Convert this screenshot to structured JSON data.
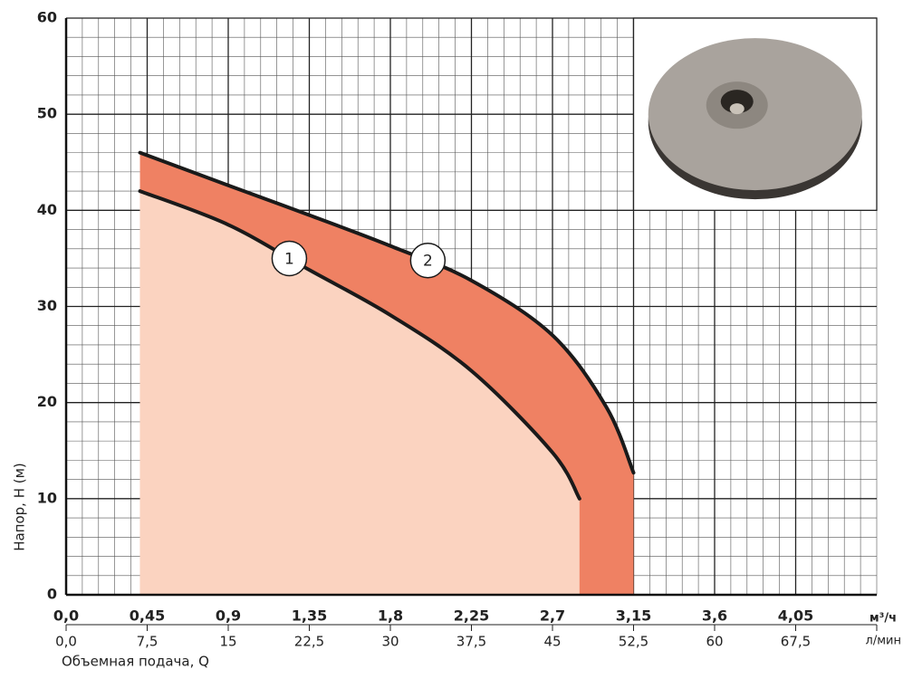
{
  "chart_data": {
    "type": "area",
    "x_label": "Объемная подача, Q",
    "y_label": "Напор, Н (м)",
    "x_unit": "м³/ч",
    "x2_unit": "л/мин",
    "xlim": [
      0,
      4.5
    ],
    "xticks": [
      {
        "value": 0,
        "label": "0,0"
      },
      {
        "value": 0.45,
        "label": "0,45"
      },
      {
        "value": 0.9,
        "label": "0,9"
      },
      {
        "value": 1.35,
        "label": "1,35"
      },
      {
        "value": 1.8,
        "label": "1,8"
      },
      {
        "value": 2.25,
        "label": "2,25"
      },
      {
        "value": 2.7,
        "label": "2,7"
      },
      {
        "value": 3.15,
        "label": "3,15"
      },
      {
        "value": 3.6,
        "label": "3,6"
      },
      {
        "value": 4.05,
        "label": "4,05"
      }
    ],
    "x2lim": [
      0,
      75
    ],
    "x2ticks": [
      {
        "value": 0,
        "label": "0,0"
      },
      {
        "value": 7.5,
        "label": "7,5"
      },
      15,
      {
        "value": 22.5,
        "label": "22,5"
      },
      30,
      {
        "value": 37.5,
        "label": "37,5"
      },
      45,
      {
        "value": 52.5,
        "label": "52,5"
      },
      60,
      {
        "value": 67.5,
        "label": "67,5"
      }
    ],
    "ylim": [
      0,
      60
    ],
    "yticks": [
      0,
      10,
      20,
      30,
      40,
      50,
      60
    ],
    "grid": true,
    "series": [
      {
        "name": "2",
        "color": "#1a1a1a",
        "fill": "#ef8163",
        "x": [
          0.41,
          0.9,
          1.35,
          1.8,
          2.25,
          2.7,
          3.0,
          3.15
        ],
        "values": [
          46,
          42.6,
          39.5,
          36.3,
          32.7,
          27,
          19.5,
          12.7
        ]
      },
      {
        "name": "1",
        "color": "#1a1a1a",
        "fill": "#fbd3c0",
        "x": [
          0.41,
          0.9,
          1.35,
          1.8,
          2.25,
          2.7,
          2.85
        ],
        "values": [
          42,
          38.5,
          33.8,
          29.1,
          23.3,
          14.8,
          10
        ]
      }
    ]
  }
}
